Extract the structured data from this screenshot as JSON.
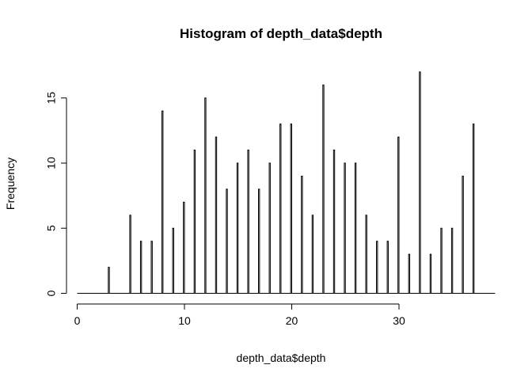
{
  "chart_data": {
    "type": "bar",
    "title": "Histogram of depth_data$depth",
    "xlabel": "depth_data$depth",
    "ylabel": "Frequency",
    "xlim": [
      0,
      38
    ],
    "ylim": [
      0,
      17
    ],
    "x_ticks": [
      0,
      10,
      20,
      30
    ],
    "y_ticks": [
      0,
      5,
      10,
      15
    ],
    "bin_width": 0.1,
    "categories": [
      1,
      2,
      3,
      4,
      5,
      6,
      7,
      8,
      9,
      10,
      11,
      12,
      13,
      14,
      15,
      16,
      17,
      18,
      19,
      20,
      21,
      22,
      23,
      24,
      25,
      26,
      27,
      28,
      29,
      30,
      31,
      32,
      33,
      34,
      35,
      36,
      37
    ],
    "values": [
      0,
      0,
      2,
      0,
      6,
      4,
      4,
      14,
      5,
      7,
      11,
      15,
      12,
      8,
      10,
      11,
      8,
      10,
      13,
      13,
      9,
      6,
      16,
      11,
      10,
      10,
      6,
      4,
      4,
      12,
      3,
      17,
      3,
      5,
      5,
      9,
      13
    ],
    "grid": false,
    "legend": "none",
    "bar_color": "#000000"
  }
}
